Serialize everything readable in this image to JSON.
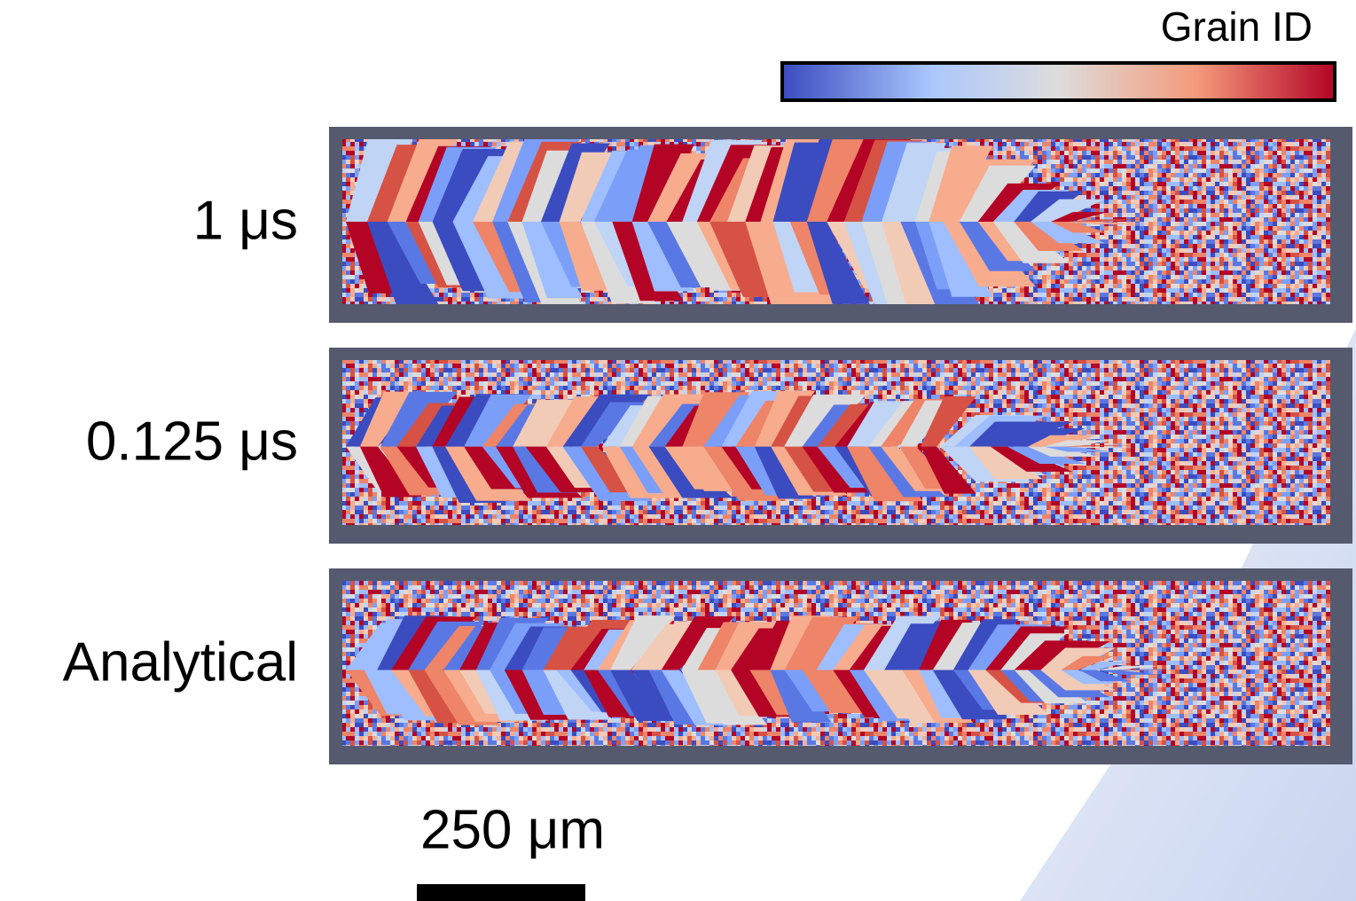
{
  "colorbar": {
    "label": "Grain ID"
  },
  "panels": [
    {
      "label": "1 μs"
    },
    {
      "label": "0.125 μs"
    },
    {
      "label": "Analytical"
    }
  ],
  "scale_bar": {
    "label": "250 μm"
  }
}
